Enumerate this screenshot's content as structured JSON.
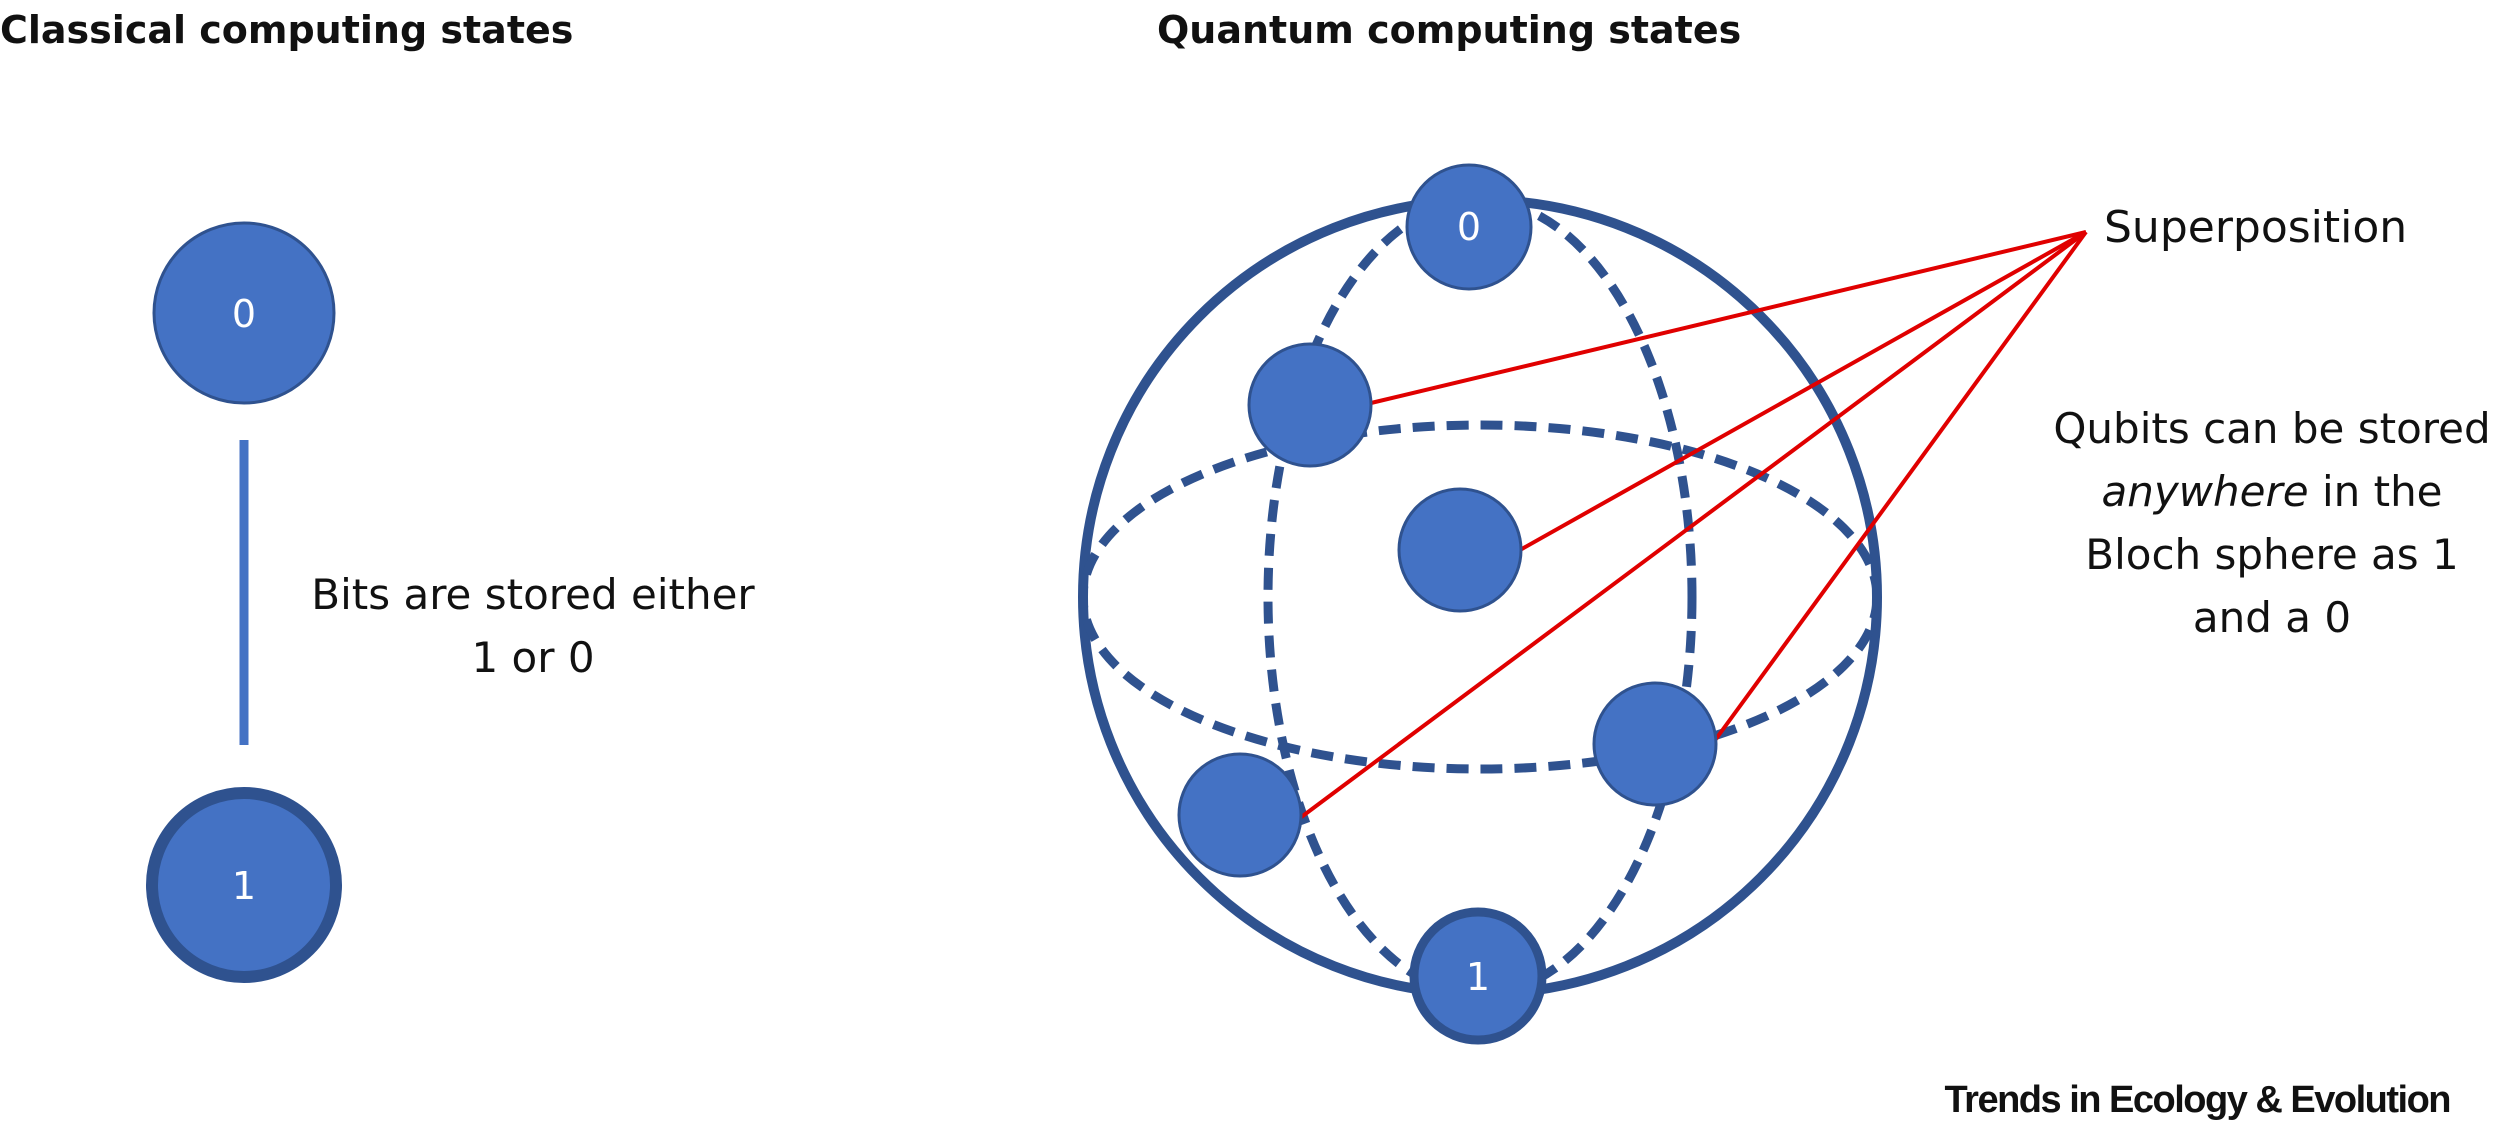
{
  "titles": {
    "classical": "Classical computing states",
    "quantum": "Quantum computing states"
  },
  "classical": {
    "bit_top": "0",
    "bit_bottom": "1",
    "caption_line1": "Bits are stored either",
    "caption_line2": "1 or 0"
  },
  "quantum": {
    "pole_top": "0",
    "pole_bottom": "1",
    "superposition_label": "Superposition",
    "caption_line1": "Qubits can be stored",
    "caption_line2_italic": "anywhere",
    "caption_line2_rest": " in the",
    "caption_line3": "Bloch sphere as 1",
    "caption_line4": "and a 0"
  },
  "footer": "Trends in Ecology & Evolution",
  "colors": {
    "node_fill": "#4472c4",
    "node_stroke": "#2f528f",
    "sphere_stroke": "#2f528f",
    "pointer_line": "#e00000"
  }
}
